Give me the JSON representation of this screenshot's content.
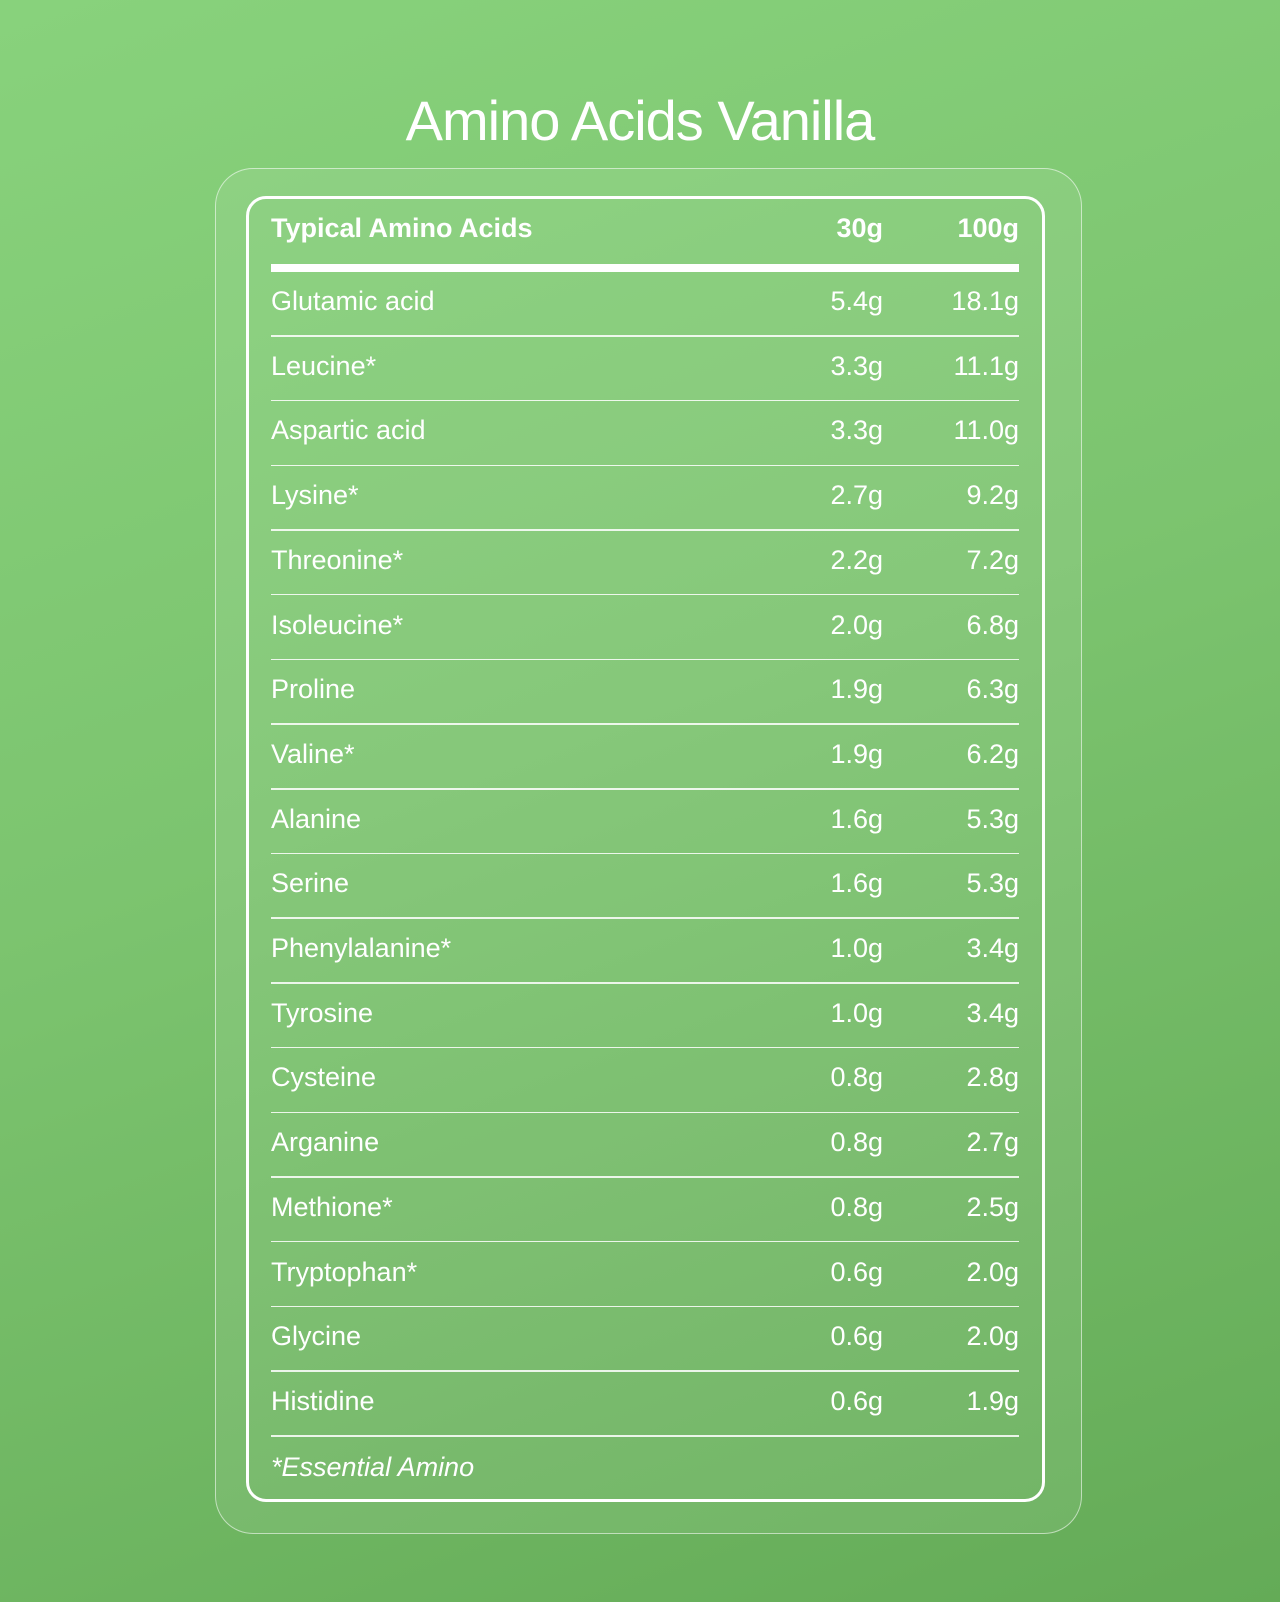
{
  "title": "Amino Acids Vanilla",
  "table": {
    "headers": [
      "Typical Amino Acids",
      "30g",
      "100g"
    ],
    "rows": [
      [
        "Glutamic acid",
        "5.4g",
        "18.1g"
      ],
      [
        "Leucine*",
        "3.3g",
        "11.1g"
      ],
      [
        "Aspartic acid",
        "3.3g",
        "11.0g"
      ],
      [
        "Lysine*",
        "2.7g",
        "9.2g"
      ],
      [
        "Threonine*",
        "2.2g",
        "7.2g"
      ],
      [
        "Isoleucine*",
        "2.0g",
        "6.8g"
      ],
      [
        "Proline",
        "1.9g",
        "6.3g"
      ],
      [
        "Valine*",
        "1.9g",
        "6.2g"
      ],
      [
        "Alanine",
        "1.6g",
        "5.3g"
      ],
      [
        "Serine",
        "1.6g",
        "5.3g"
      ],
      [
        "Phenylalanine*",
        "1.0g",
        "3.4g"
      ],
      [
        "Tyrosine",
        "1.0g",
        "3.4g"
      ],
      [
        "Cysteine",
        "0.8g",
        "2.8g"
      ],
      [
        "Arganine",
        "0.8g",
        "2.7g"
      ],
      [
        "Methione*",
        "0.8g",
        "2.5g"
      ],
      [
        "Tryptophan*",
        "0.6g",
        "2.0g"
      ],
      [
        "Glycine",
        "0.6g",
        "2.0g"
      ],
      [
        "Histidine",
        "0.6g",
        "1.9g"
      ]
    ],
    "footnote": "*Essential Amino"
  }
}
